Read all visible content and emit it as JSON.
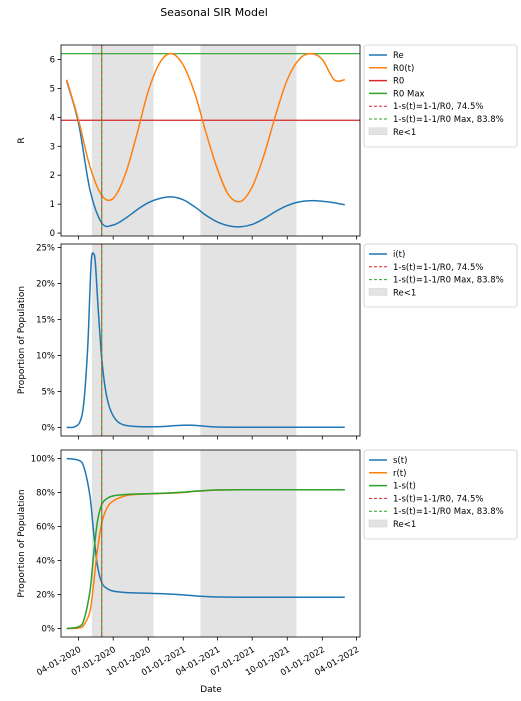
{
  "chart_data": {
    "type": "line",
    "title": "Seasonal SIR Model",
    "xlabel": "Date",
    "x_ticks": [
      "04-01-2020",
      "07-01-2020",
      "10-01-2020",
      "01-01-2021",
      "04-01-2021",
      "07-01-2021",
      "10-01-2021",
      "01-01-2022",
      "04-01-2022"
    ],
    "x_range": [
      "2020-02-15",
      "2022-04-10"
    ],
    "shaded_regions": [
      {
        "label": "Re<1",
        "start": "2020-05-06",
        "end": "2020-10-15",
        "color": "#e3e3e3"
      },
      {
        "label": "Re<1",
        "start": "2021-02-15",
        "end": "2021-10-25",
        "color": "#e3e3e3"
      }
    ],
    "vlines": [
      {
        "date": "2020-06-01",
        "color": "#d62728",
        "style": "dashed"
      },
      {
        "date": "2020-06-01",
        "color": "#2ca02c",
        "style": "dashed"
      }
    ],
    "panels": [
      {
        "ylabel": "R",
        "ylim": [
          -0.1,
          6.5
        ],
        "y_ticks": [
          0,
          1,
          2,
          3,
          4,
          5,
          6
        ],
        "y_tick_labels": [
          "0",
          "1",
          "2",
          "3",
          "4",
          "5",
          "6"
        ],
        "hlines": [
          {
            "value": 6.2,
            "color": "#2ca02c"
          },
          {
            "value": 3.9,
            "color": "#d62728"
          }
        ],
        "series": [
          {
            "name": "Re",
            "color": "#1f77b4",
            "dates": [
              "2020-03-01",
              "2020-04-01",
              "2020-05-01",
              "2020-06-01",
              "2020-07-01",
              "2020-08-01",
              "2020-09-01",
              "2020-10-01",
              "2020-11-01",
              "2020-12-01",
              "2021-01-01",
              "2021-02-01",
              "2021-03-01",
              "2021-04-01",
              "2021-05-01",
              "2021-06-01",
              "2021-07-01",
              "2021-08-01",
              "2021-09-01",
              "2021-10-01",
              "2021-11-01",
              "2021-12-01",
              "2022-01-01",
              "2022-02-01",
              "2022-03-01"
            ],
            "values": [
              5.25,
              3.8,
              1.5,
              0.35,
              0.28,
              0.5,
              0.8,
              1.05,
              1.2,
              1.25,
              1.15,
              0.9,
              0.62,
              0.38,
              0.25,
              0.22,
              0.3,
              0.5,
              0.75,
              0.95,
              1.08,
              1.12,
              1.1,
              1.05,
              0.98
            ]
          },
          {
            "name": "R0(t)",
            "color": "#ff7f0e",
            "dates": [
              "2020-03-01",
              "2020-04-01",
              "2020-05-01",
              "2020-06-01",
              "2020-07-01",
              "2020-08-01",
              "2020-09-01",
              "2020-10-01",
              "2020-11-01",
              "2020-12-01",
              "2021-01-01",
              "2021-02-01",
              "2021-03-01",
              "2021-04-01",
              "2021-05-01",
              "2021-06-01",
              "2021-07-01",
              "2021-08-01",
              "2021-09-01",
              "2021-10-01",
              "2021-11-01",
              "2021-12-01",
              "2022-01-01",
              "2022-02-01",
              "2022-03-01"
            ],
            "values": [
              5.3,
              3.9,
              2.3,
              1.3,
              1.2,
              2.0,
              3.4,
              4.9,
              5.9,
              6.2,
              5.8,
              4.8,
              3.5,
              2.2,
              1.3,
              1.1,
              1.6,
              2.7,
              4.1,
              5.3,
              6.0,
              6.2,
              6.0,
              5.3,
              5.3
            ]
          },
          {
            "name": "R0",
            "color": "#d62728",
            "constant": 3.9
          },
          {
            "name": "R0 Max",
            "color": "#2ca02c",
            "constant": 6.2
          }
        ],
        "legend": [
          {
            "label": "Re",
            "color": "#1f77b4",
            "style": "solid"
          },
          {
            "label": "R0(t)",
            "color": "#ff7f0e",
            "style": "solid"
          },
          {
            "label": "R0",
            "color": "#d62728",
            "style": "solid"
          },
          {
            "label": "R0 Max",
            "color": "#2ca02c",
            "style": "solid"
          },
          {
            "label": "1-s(t)=1-1/R0, 74.5%",
            "color": "#d62728",
            "style": "dashed"
          },
          {
            "label": "1-s(t)=1-1/R0 Max, 83.8%",
            "color": "#2ca02c",
            "style": "dashed"
          },
          {
            "label": "Re<1",
            "color": "#e3e3e3",
            "style": "patch"
          }
        ]
      },
      {
        "ylabel": "Proportion of Population",
        "ylim": [
          -1.2,
          25.5
        ],
        "y_ticks": [
          0,
          5,
          10,
          15,
          20,
          25
        ],
        "y_tick_labels": [
          "0%",
          "5%",
          "10%",
          "15%",
          "20%",
          "25%"
        ],
        "series": [
          {
            "name": "i(t)",
            "color": "#1f77b4",
            "dates": [
              "2020-03-01",
              "2020-03-20",
              "2020-04-05",
              "2020-04-15",
              "2020-04-25",
              "2020-05-01",
              "2020-05-05",
              "2020-05-10",
              "2020-05-15",
              "2020-05-22",
              "2020-06-01",
              "2020-06-10",
              "2020-06-20",
              "2020-07-01",
              "2020-07-15",
              "2020-08-01",
              "2020-09-01",
              "2020-10-01",
              "2020-11-01",
              "2020-12-01",
              "2021-01-01",
              "2021-02-01",
              "2021-03-01",
              "2021-04-01",
              "2021-06-01",
              "2021-09-01",
              "2021-12-01",
              "2022-03-01"
            ],
            "values": [
              0.0,
              0.05,
              0.8,
              3.5,
              11.0,
              19.0,
              23.5,
              24.2,
              23.0,
              17.0,
              9.5,
              5.5,
              3.0,
              1.6,
              0.7,
              0.3,
              0.12,
              0.08,
              0.1,
              0.2,
              0.3,
              0.28,
              0.15,
              0.05,
              0.02,
              0.01,
              0.01,
              0.01
            ]
          }
        ],
        "legend": [
          {
            "label": "i(t)",
            "color": "#1f77b4",
            "style": "solid"
          },
          {
            "label": "1-s(t)=1-1/R0, 74.5%",
            "color": "#d62728",
            "style": "dashed"
          },
          {
            "label": "1-s(t)=1-1/R0 Max, 83.8%",
            "color": "#2ca02c",
            "style": "dashed"
          },
          {
            "label": "Re<1",
            "color": "#e3e3e3",
            "style": "patch"
          }
        ]
      },
      {
        "ylabel": "Proportion of Population",
        "ylim": [
          -5,
          105
        ],
        "y_ticks": [
          0,
          20,
          40,
          60,
          80,
          100
        ],
        "y_tick_labels": [
          "0%",
          "20%",
          "40%",
          "60%",
          "80%",
          "100%"
        ],
        "series": [
          {
            "name": "s(t)",
            "color": "#1f77b4",
            "dates": [
              "2020-03-01",
              "2020-04-01",
              "2020-04-15",
              "2020-05-01",
              "2020-05-10",
              "2020-05-20",
              "2020-06-01",
              "2020-06-15",
              "2020-07-01",
              "2020-08-01",
              "2020-09-01",
              "2020-10-01",
              "2020-11-01",
              "2020-12-01",
              "2021-01-01",
              "2021-02-01",
              "2021-03-01",
              "2021-04-01",
              "2021-06-01",
              "2021-09-01",
              "2021-12-01",
              "2022-03-01"
            ],
            "values": [
              100,
              99,
              95,
              78,
              58,
              38,
              27,
              23.5,
              22,
              21.2,
              20.9,
              20.7,
              20.5,
              20.2,
              19.8,
              19.2,
              18.8,
              18.5,
              18.4,
              18.4,
              18.4,
              18.4
            ]
          },
          {
            "name": "r(t)",
            "color": "#ff7f0e",
            "dates": [
              "2020-03-01",
              "2020-04-01",
              "2020-04-15",
              "2020-05-01",
              "2020-05-10",
              "2020-05-20",
              "2020-06-01",
              "2020-06-15",
              "2020-07-01",
              "2020-08-01",
              "2020-09-01",
              "2020-10-01",
              "2020-11-01",
              "2020-12-01",
              "2021-01-01",
              "2021-02-01",
              "2021-03-01",
              "2021-04-01",
              "2021-06-01",
              "2021-09-01",
              "2021-12-01",
              "2022-03-01"
            ],
            "values": [
              0,
              0.3,
              2,
              10,
              25,
              45,
              62,
              71,
              75,
              78,
              78.9,
              79.2,
              79.4,
              79.6,
              80.0,
              80.7,
              81.1,
              81.5,
              81.6,
              81.6,
              81.6,
              81.6
            ]
          },
          {
            "name": "1-s(t)",
            "color": "#2ca02c",
            "dates": [
              "2020-03-01",
              "2020-04-01",
              "2020-04-15",
              "2020-05-01",
              "2020-05-10",
              "2020-05-20",
              "2020-06-01",
              "2020-06-15",
              "2020-07-01",
              "2020-08-01",
              "2020-09-01",
              "2020-10-01",
              "2020-11-01",
              "2020-12-01",
              "2021-01-01",
              "2021-02-01",
              "2021-03-01",
              "2021-04-01",
              "2021-06-01",
              "2021-09-01",
              "2021-12-01",
              "2022-03-01"
            ],
            "values": [
              0,
              1,
              5,
              22,
              42,
              62,
              73,
              76.5,
              78,
              78.8,
              79.1,
              79.3,
              79.5,
              79.8,
              80.2,
              80.8,
              81.2,
              81.5,
              81.6,
              81.6,
              81.6,
              81.6
            ]
          }
        ],
        "legend": [
          {
            "label": "s(t)",
            "color": "#1f77b4",
            "style": "solid"
          },
          {
            "label": "r(t)",
            "color": "#ff7f0e",
            "style": "solid"
          },
          {
            "label": "1-s(t)",
            "color": "#2ca02c",
            "style": "solid"
          },
          {
            "label": "1-s(t)=1-1/R0, 74.5%",
            "color": "#d62728",
            "style": "dashed"
          },
          {
            "label": "1-s(t)=1-1/R0 Max, 83.8%",
            "color": "#2ca02c",
            "style": "dashed"
          },
          {
            "label": "Re<1",
            "color": "#e3e3e3",
            "style": "patch"
          }
        ]
      }
    ]
  }
}
